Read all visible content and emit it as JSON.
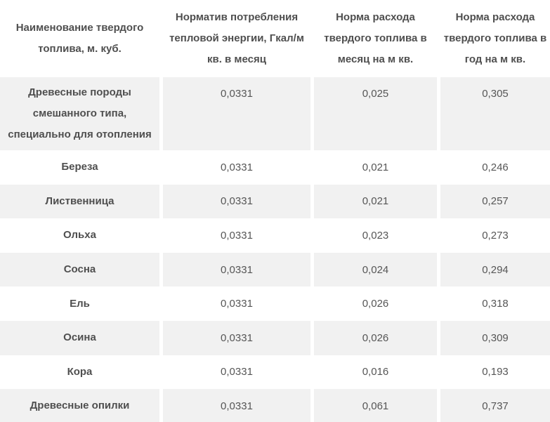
{
  "table": {
    "headers": [
      {
        "lines": [
          "Наименование твердого",
          "топлива, м. куб."
        ]
      },
      {
        "lines": [
          "Норматив потребления",
          "тепловой энергии, Гкал/м",
          "кв. в месяц"
        ]
      },
      {
        "lines": [
          "Норма расхода",
          "твердого топлива в",
          "месяц на м кв."
        ]
      },
      {
        "lines": [
          "Норма расхода",
          "твердого топлива в",
          "год на м кв."
        ]
      }
    ],
    "rows": [
      {
        "name": "Древесные породы смешанного типа, специально для отопления",
        "consumption_standard": "0,0331",
        "monthly_rate": "0,025",
        "yearly_rate": "0,305"
      },
      {
        "name": "Береза",
        "consumption_standard": "0,0331",
        "monthly_rate": "0,021",
        "yearly_rate": "0,246"
      },
      {
        "name": "Лиственница",
        "consumption_standard": "0,0331",
        "monthly_rate": "0,021",
        "yearly_rate": "0,257"
      },
      {
        "name": "Ольха",
        "consumption_standard": "0,0331",
        "monthly_rate": "0,023",
        "yearly_rate": "0,273"
      },
      {
        "name": "Сосна",
        "consumption_standard": "0,0331",
        "monthly_rate": "0,024",
        "yearly_rate": "0,294"
      },
      {
        "name": "Ель",
        "consumption_standard": "0,0331",
        "monthly_rate": "0,026",
        "yearly_rate": "0,318"
      },
      {
        "name": "Осина",
        "consumption_standard": "0,0331",
        "monthly_rate": "0,026",
        "yearly_rate": "0,309"
      },
      {
        "name": "Кора",
        "consumption_standard": "0,0331",
        "monthly_rate": "0,016",
        "yearly_rate": "0,193"
      },
      {
        "name": "Древесные опилки",
        "consumption_standard": "0,0331",
        "monthly_rate": "0,061",
        "yearly_rate": "0,737"
      }
    ]
  },
  "colors": {
    "background": "#ffffff",
    "alt_row_bg": "#f1f1f1",
    "header_text": "#4f4f4f",
    "value_text": "#565656"
  }
}
